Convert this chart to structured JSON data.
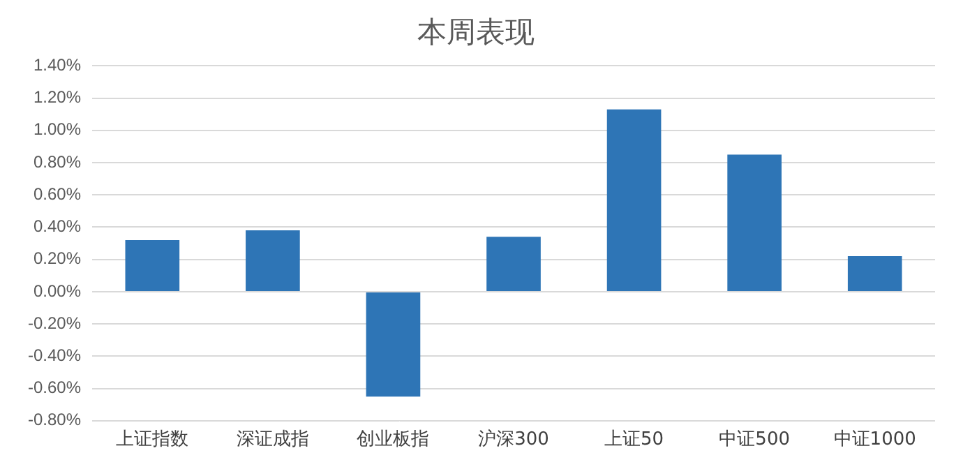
{
  "chart_data": {
    "type": "bar",
    "title": "本周表现",
    "categories": [
      "上证指数",
      "深证成指",
      "创业板指",
      "沪深300",
      "上证50",
      "中证500",
      "中证1000"
    ],
    "values": [
      0.32,
      0.38,
      -0.65,
      0.34,
      1.13,
      0.85,
      0.22
    ],
    "color": "#2e75b6",
    "ylim": [
      -0.8,
      1.4
    ],
    "yticks": [
      {
        "value": -0.8,
        "label": "-0.80%"
      },
      {
        "value": -0.6,
        "label": "-0.60%"
      },
      {
        "value": -0.4,
        "label": "-0.40%"
      },
      {
        "value": -0.2,
        "label": "-0.20%"
      },
      {
        "value": 0,
        "label": "0.00%"
      },
      {
        "value": 0.2,
        "label": "0.20%"
      },
      {
        "value": 0.4,
        "label": "0.40%"
      },
      {
        "value": 0.6,
        "label": "0.60%"
      },
      {
        "value": 0.8,
        "label": "0.80%"
      },
      {
        "value": 1.0,
        "label": "1.00%"
      },
      {
        "value": 1.2,
        "label": "1.20%"
      },
      {
        "value": 1.4,
        "label": "1.40%"
      }
    ],
    "grid": "y",
    "legend": false
  }
}
